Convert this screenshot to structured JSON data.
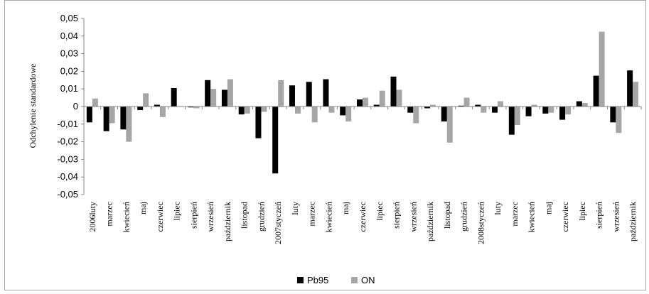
{
  "chart_data": {
    "type": "bar",
    "ylabel": "Odchylenie standardowe",
    "xlabel": "",
    "ylim": [
      -0.05,
      0.05
    ],
    "ytick_step": 0.01,
    "yticks": [
      "-0,05",
      "-0,04",
      "-0,03",
      "-0,02",
      "-0,01",
      "0",
      "0,01",
      "0,02",
      "0,03",
      "0,04",
      "0,05"
    ],
    "grid": false,
    "legend_position": "bottom",
    "categories": [
      "2006luty",
      "marzec",
      "kwiecień",
      "maj",
      "czerwiec",
      "lipiec",
      "sierpień",
      "wrzesień",
      "październik",
      "listopad",
      "grudzień",
      "2007styczeń",
      "luty",
      "marzec",
      "kwiecień",
      "maj",
      "czerwiec",
      "lipiec",
      "sierpień",
      "wrzesień",
      "październik",
      "listopad",
      "grudzień",
      "2008styczeń",
      "luty",
      "marzec",
      "kwiecień",
      "maj",
      "czerwiec",
      "lipiec",
      "sierpień",
      "wrzesień",
      "październik"
    ],
    "series": [
      {
        "name": "Pb95",
        "color": "#000000",
        "values": [
          -0.009,
          -0.014,
          -0.013,
          -0.002,
          0.001,
          0.0105,
          -0.0005,
          0.015,
          0.0095,
          -0.0045,
          -0.018,
          -0.038,
          0.012,
          0.014,
          0.0155,
          -0.005,
          0.004,
          0.001,
          0.017,
          -0.0035,
          -0.001,
          -0.0085,
          0.0005,
          0.001,
          -0.0035,
          -0.016,
          -0.0055,
          -0.004,
          -0.0075,
          0.003,
          0.0175,
          -0.009,
          0.0205
        ]
      },
      {
        "name": "ON",
        "color": "#a6a6a6",
        "values": [
          0.0045,
          -0.0095,
          -0.02,
          0.0075,
          -0.006,
          0.0,
          -0.001,
          0.01,
          0.0155,
          -0.004,
          -0.003,
          0.015,
          -0.004,
          -0.009,
          -0.0035,
          -0.0085,
          0.005,
          0.009,
          0.0095,
          -0.0095,
          0.001,
          -0.0205,
          0.005,
          -0.0035,
          0.003,
          -0.0105,
          0.001,
          -0.0035,
          -0.0045,
          0.002,
          0.0425,
          -0.015,
          0.014
        ]
      }
    ]
  }
}
